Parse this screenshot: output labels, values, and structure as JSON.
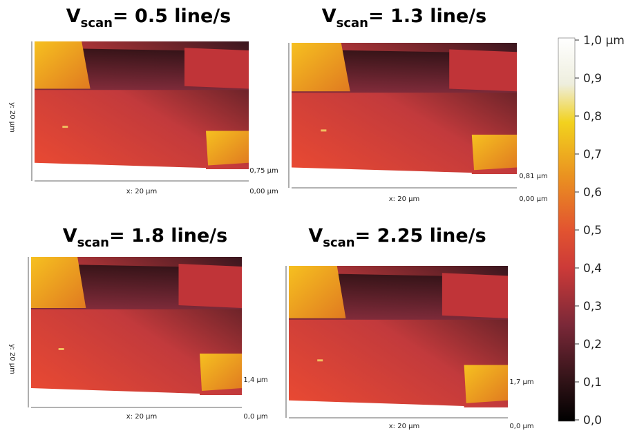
{
  "panels": [
    {
      "title": {
        "main": "V",
        "sub": "scan",
        "rest": "= 0.5 line/s"
      },
      "y_label": "y: 20 µm",
      "x_label": "x: 20 µm",
      "z_max": "0,75 µm",
      "z_min": "0,00 µm"
    },
    {
      "title": {
        "main": "V",
        "sub": "scan",
        "rest": "= 1.3 line/s"
      },
      "x_label": "x: 20 µm",
      "z_max": "0,81 µm",
      "z_min": "0,00 µm"
    },
    {
      "title": {
        "main": "V",
        "sub": "scan",
        "rest": "= 1.8 line/s"
      },
      "y_label": "y: 20 µm",
      "x_label": "x: 20 µm",
      "z_max": "1,4 µm",
      "z_min": "0,0 µm"
    },
    {
      "title": {
        "main": "V",
        "sub": "scan",
        "rest": "= 2.25 line/s"
      },
      "x_label": "x: 20 µm",
      "z_max": "1,7 µm",
      "z_min": "0,0 µm"
    }
  ],
  "colorbar": {
    "labels": [
      "1,0 µm",
      "0,9",
      "0,8",
      "0,7",
      "0,6",
      "0,5",
      "0,4",
      "0,3",
      "0,2",
      "0,1",
      "0,0"
    ]
  }
}
